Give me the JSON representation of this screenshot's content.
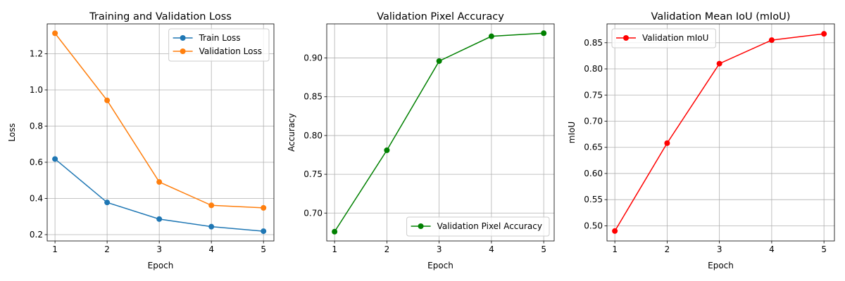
{
  "chart_data": [
    {
      "type": "line",
      "title": "Training and Validation Loss",
      "xlabel": "Epoch",
      "ylabel": "Loss",
      "x": [
        1,
        2,
        3,
        4,
        5
      ],
      "xticks": [
        "1",
        "2",
        "3",
        "4",
        "5"
      ],
      "yticks": [
        "0.2",
        "0.4",
        "0.6",
        "0.8",
        "1.0",
        "1.2"
      ],
      "xlim": [
        0.85,
        5.2
      ],
      "ylim": [
        0.165,
        1.365
      ],
      "grid": true,
      "legend": "top-right",
      "series": [
        {
          "name": "Train Loss",
          "color": "#1f77b4",
          "values": [
            0.618,
            0.378,
            0.286,
            0.244,
            0.219
          ]
        },
        {
          "name": "Validation Loss",
          "color": "#ff7f0e",
          "values": [
            1.313,
            0.942,
            0.491,
            0.362,
            0.348
          ]
        }
      ]
    },
    {
      "type": "line",
      "title": "Validation Pixel Accuracy",
      "xlabel": "Epoch",
      "ylabel": "Accuracy",
      "x": [
        1,
        2,
        3,
        4,
        5
      ],
      "xticks": [
        "1",
        "2",
        "3",
        "4",
        "5"
      ],
      "yticks": [
        "0.70",
        "0.75",
        "0.80",
        "0.85",
        "0.90"
      ],
      "xlim": [
        0.85,
        5.2
      ],
      "ylim": [
        0.664,
        0.944
      ],
      "grid": true,
      "legend": "bottom-right",
      "series": [
        {
          "name": "Validation Pixel Accuracy",
          "color": "#008000",
          "values": [
            0.676,
            0.781,
            0.896,
            0.928,
            0.932
          ]
        }
      ]
    },
    {
      "type": "line",
      "title": "Validation Mean IoU (mIoU)",
      "xlabel": "Epoch",
      "ylabel": "mIoU",
      "x": [
        1,
        2,
        3,
        4,
        5
      ],
      "xticks": [
        "1",
        "2",
        "3",
        "4",
        "5"
      ],
      "yticks": [
        "0.50",
        "0.55",
        "0.60",
        "0.65",
        "0.70",
        "0.75",
        "0.80",
        "0.85"
      ],
      "xlim": [
        0.85,
        5.2
      ],
      "ylim": [
        0.471,
        0.886
      ],
      "grid": true,
      "legend": "top-left",
      "series": [
        {
          "name": "Validation mIoU",
          "color": "#ff0000",
          "values": [
            0.49,
            0.658,
            0.81,
            0.855,
            0.867
          ]
        }
      ]
    }
  ]
}
